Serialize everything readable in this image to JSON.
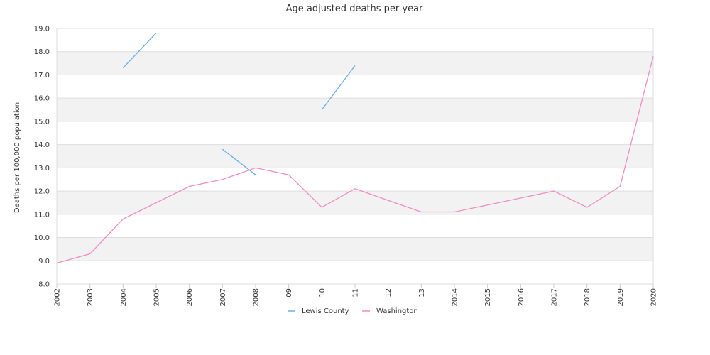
{
  "chart_data": {
    "type": "line",
    "title": "Age adjusted deaths per year",
    "xlabel": "",
    "ylabel": "Deaths per 100,000 population",
    "ylim": [
      8,
      19
    ],
    "yticks": [
      "8.0",
      "9.0",
      "10.0",
      "11.0",
      "12.0",
      "13.0",
      "14.0",
      "15.0",
      "16.0",
      "17.0",
      "18.0",
      "19.0"
    ],
    "categories": [
      "2002",
      "2003",
      "2004",
      "2005",
      "2006",
      "2007",
      "2008",
      "09",
      "10",
      "11",
      "12",
      "13",
      "2014",
      "2015",
      "2016",
      "2017",
      "2018",
      "2019",
      "2020"
    ],
    "grid": true,
    "legend_position": "bottom-center",
    "series": [
      {
        "name": "Lewis County",
        "color": "#6aaee8",
        "values": [
          null,
          null,
          17.3,
          18.8,
          null,
          13.8,
          12.7,
          null,
          15.5,
          17.4,
          null,
          null,
          null,
          null,
          null,
          null,
          null,
          null,
          null
        ]
      },
      {
        "name": "Washington",
        "color": "#ef8cc4",
        "values": [
          8.9,
          9.3,
          10.8,
          11.5,
          12.2,
          12.5,
          13.0,
          12.7,
          11.3,
          12.1,
          11.6,
          11.1,
          11.1,
          11.4,
          11.7,
          12.0,
          11.3,
          12.2,
          17.8
        ]
      }
    ]
  }
}
